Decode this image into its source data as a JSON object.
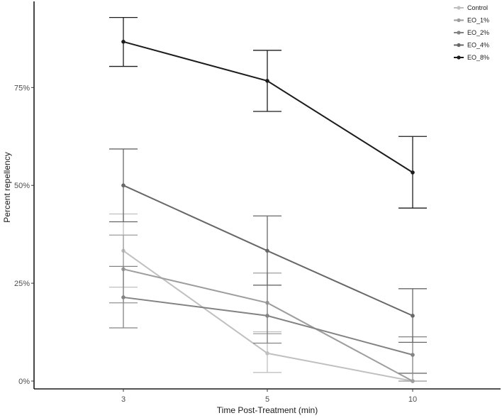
{
  "chart_data": {
    "type": "line",
    "title": "",
    "xlabel": "Time Post-Treatment (min)",
    "ylabel": "Percent repellency",
    "categories": [
      "3",
      "5",
      "10"
    ],
    "y_ticks": [
      0,
      25,
      50,
      75
    ],
    "y_tick_labels": [
      "0%",
      "25%",
      "50%",
      "75%"
    ],
    "ylim": [
      -2,
      97
    ],
    "grid": false,
    "legend_position": "top-right",
    "error_bars": true,
    "series": [
      {
        "name": "Control",
        "color": "#c0c0c0",
        "values": [
          33.3,
          7.1,
          0.0
        ],
        "err_low": [
          24.0,
          2.2,
          0.0
        ],
        "err_high": [
          42.7,
          12.6,
          2.0
        ]
      },
      {
        "name": "EO_1%",
        "color": "#9e9e9e",
        "values": [
          28.6,
          20.0,
          0.0
        ],
        "err_low": [
          20.0,
          12.1,
          0.0
        ],
        "err_high": [
          37.3,
          27.6,
          2.0
        ]
      },
      {
        "name": "EO_2%",
        "color": "#838383",
        "values": [
          21.4,
          16.7,
          6.7
        ],
        "err_low": [
          13.6,
          9.7,
          2.0
        ],
        "err_high": [
          29.3,
          24.5,
          11.3
        ]
      },
      {
        "name": "EO_4%",
        "color": "#676767",
        "values": [
          50.0,
          33.3,
          16.7
        ],
        "err_low": [
          40.7,
          24.5,
          9.9
        ],
        "err_high": [
          59.3,
          42.2,
          23.6
        ]
      },
      {
        "name": "EO_8%",
        "color": "#1c1c1c",
        "values": [
          86.7,
          76.7,
          53.3
        ],
        "err_low": [
          80.4,
          68.9,
          44.2
        ],
        "err_high": [
          92.9,
          84.5,
          62.5
        ]
      }
    ]
  }
}
